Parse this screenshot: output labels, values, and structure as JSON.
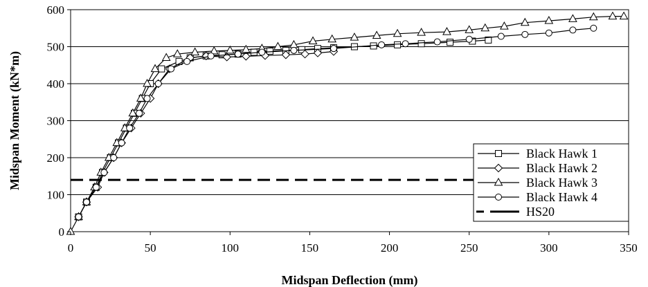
{
  "chart_data": {
    "type": "line",
    "title": "",
    "xlabel": "Midspan Deflection (mm)",
    "ylabel": "Midspan Moment (kN*m)",
    "xlim": [
      0,
      350
    ],
    "ylim": [
      0,
      600
    ],
    "xticks": [
      0,
      50,
      100,
      150,
      200,
      250,
      300,
      350
    ],
    "yticks": [
      0,
      100,
      200,
      300,
      400,
      500,
      600
    ],
    "xtick_labels": [
      "0",
      "50",
      "100",
      "150",
      "200",
      "250",
      "300",
      "350"
    ],
    "ytick_labels": [
      "0",
      "100",
      "200",
      "300",
      "400",
      "500",
      "600"
    ],
    "grid": "horizontal",
    "legend_position": "bottom-right",
    "series": [
      {
        "name": "Black Hawk 1",
        "marker": "square",
        "points": [
          [
            5,
            40
          ],
          [
            10,
            80
          ],
          [
            16,
            120
          ],
          [
            20,
            160
          ],
          [
            25,
            200
          ],
          [
            30,
            240
          ],
          [
            35,
            280
          ],
          [
            40,
            320
          ],
          [
            45,
            360
          ],
          [
            50,
            400
          ],
          [
            57,
            440
          ],
          [
            68,
            460
          ],
          [
            75,
            470
          ],
          [
            85,
            475
          ],
          [
            95,
            478
          ],
          [
            105,
            480
          ],
          [
            115,
            485
          ],
          [
            125,
            488
          ],
          [
            135,
            490
          ],
          [
            145,
            492
          ],
          [
            155,
            495
          ],
          [
            165,
            497
          ],
          [
            178,
            500
          ],
          [
            190,
            502
          ],
          [
            205,
            505
          ],
          [
            220,
            508
          ],
          [
            238,
            512
          ],
          [
            252,
            515
          ],
          [
            262,
            518
          ]
        ]
      },
      {
        "name": "Black Hawk 2",
        "marker": "diamond",
        "points": [
          [
            5,
            40
          ],
          [
            10,
            80
          ],
          [
            17,
            120
          ],
          [
            21,
            160
          ],
          [
            27,
            200
          ],
          [
            32,
            240
          ],
          [
            38,
            280
          ],
          [
            44,
            320
          ],
          [
            50,
            360
          ],
          [
            55,
            400
          ],
          [
            62,
            440
          ],
          [
            75,
            470
          ],
          [
            85,
            475
          ],
          [
            98,
            472
          ],
          [
            110,
            474
          ],
          [
            122,
            476
          ],
          [
            135,
            478
          ],
          [
            147,
            480
          ],
          [
            155,
            483
          ],
          [
            165,
            487
          ]
        ]
      },
      {
        "name": "Black Hawk 3",
        "marker": "triangle",
        "points": [
          [
            0,
            0
          ],
          [
            5,
            40
          ],
          [
            10,
            80
          ],
          [
            15,
            120
          ],
          [
            19,
            160
          ],
          [
            24,
            200
          ],
          [
            29,
            240
          ],
          [
            34,
            280
          ],
          [
            39,
            320
          ],
          [
            44,
            360
          ],
          [
            48,
            400
          ],
          [
            53,
            440
          ],
          [
            60,
            470
          ],
          [
            67,
            480
          ],
          [
            78,
            485
          ],
          [
            90,
            488
          ],
          [
            100,
            490
          ],
          [
            110,
            492
          ],
          [
            120,
            495
          ],
          [
            130,
            500
          ],
          [
            140,
            505
          ],
          [
            152,
            515
          ],
          [
            164,
            520
          ],
          [
            178,
            525
          ],
          [
            192,
            530
          ],
          [
            205,
            535
          ],
          [
            220,
            538
          ],
          [
            236,
            540
          ],
          [
            250,
            545
          ],
          [
            260,
            550
          ],
          [
            272,
            555
          ],
          [
            285,
            565
          ],
          [
            300,
            570
          ],
          [
            315,
            575
          ],
          [
            328,
            580
          ],
          [
            340,
            582
          ],
          [
            347,
            582
          ]
        ]
      },
      {
        "name": "Black Hawk 4",
        "marker": "circle",
        "points": [
          [
            5,
            40
          ],
          [
            10,
            80
          ],
          [
            16,
            120
          ],
          [
            21,
            160
          ],
          [
            27,
            200
          ],
          [
            32,
            240
          ],
          [
            37,
            280
          ],
          [
            43,
            320
          ],
          [
            48,
            360
          ],
          [
            55,
            400
          ],
          [
            63,
            440
          ],
          [
            73,
            460
          ],
          [
            88,
            475
          ],
          [
            105,
            480
          ],
          [
            120,
            485
          ],
          [
            140,
            490
          ],
          [
            165,
            495
          ],
          [
            195,
            505
          ],
          [
            210,
            508
          ],
          [
            230,
            513
          ],
          [
            250,
            520
          ],
          [
            270,
            528
          ],
          [
            285,
            533
          ],
          [
            300,
            537
          ],
          [
            315,
            545
          ],
          [
            328,
            550
          ]
        ]
      },
      {
        "name": "HS20",
        "style": "dashed",
        "constant_y": 140
      }
    ]
  }
}
